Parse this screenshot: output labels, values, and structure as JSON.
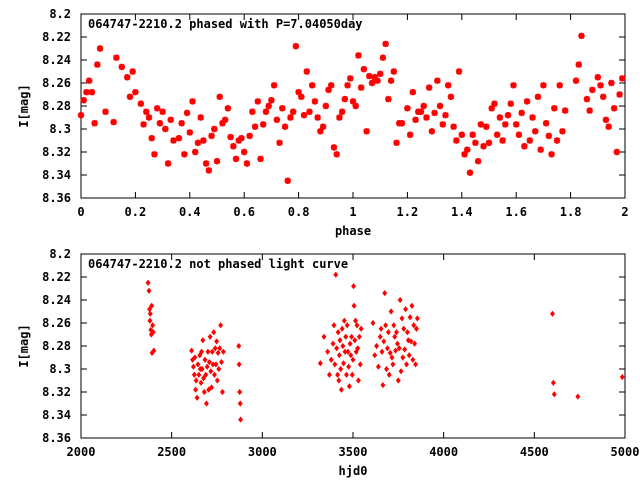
{
  "chart_data": [
    {
      "type": "scatter",
      "title": "064747-2210.2 phased with P=7.04050day",
      "xlabel": "phase",
      "ylabel": "I[mag]",
      "xlim": [
        0,
        2
      ],
      "ylim": [
        8.2,
        8.36
      ],
      "y_inverted": true,
      "grid": false,
      "marker": "star",
      "color": "#ff0000",
      "x_ticks": [
        "0",
        "0.2",
        "0.4",
        "0.6",
        "0.8",
        "1",
        "1.2",
        "1.4",
        "1.6",
        "1.8",
        "2"
      ],
      "y_ticks": [
        "8.2",
        "8.22",
        "8.24",
        "8.26",
        "8.28",
        "8.3",
        "8.32",
        "8.34",
        "8.36"
      ],
      "points": [
        [
          0.0,
          8.288
        ],
        [
          0.01,
          8.275
        ],
        [
          0.02,
          8.268
        ],
        [
          0.03,
          8.258
        ],
        [
          0.04,
          8.268
        ],
        [
          0.05,
          8.295
        ],
        [
          0.06,
          8.244
        ],
        [
          0.07,
          8.23
        ],
        [
          0.09,
          8.285
        ],
        [
          0.12,
          8.294
        ],
        [
          0.13,
          8.238
        ],
        [
          0.15,
          8.246
        ],
        [
          0.17,
          8.255
        ],
        [
          0.18,
          8.272
        ],
        [
          0.19,
          8.25
        ],
        [
          0.2,
          8.268
        ],
        [
          0.22,
          8.278
        ],
        [
          0.23,
          8.296
        ],
        [
          0.24,
          8.285
        ],
        [
          0.25,
          8.29
        ],
        [
          0.26,
          8.308
        ],
        [
          0.27,
          8.322
        ],
        [
          0.28,
          8.282
        ],
        [
          0.29,
          8.295
        ],
        [
          0.3,
          8.285
        ],
        [
          0.31,
          8.3
        ],
        [
          0.32,
          8.33
        ],
        [
          0.33,
          8.292
        ],
        [
          0.34,
          8.31
        ],
        [
          0.36,
          8.308
        ],
        [
          0.37,
          8.295
        ],
        [
          0.38,
          8.322
        ],
        [
          0.39,
          8.286
        ],
        [
          0.4,
          8.303
        ],
        [
          0.41,
          8.276
        ],
        [
          0.42,
          8.32
        ],
        [
          0.43,
          8.312
        ],
        [
          0.44,
          8.29
        ],
        [
          0.45,
          8.31
        ],
        [
          0.46,
          8.33
        ],
        [
          0.47,
          8.336
        ],
        [
          0.48,
          8.306
        ],
        [
          0.49,
          8.3
        ],
        [
          0.5,
          8.328
        ],
        [
          0.51,
          8.272
        ],
        [
          0.52,
          8.295
        ],
        [
          0.53,
          8.292
        ],
        [
          0.54,
          8.282
        ],
        [
          0.55,
          8.307
        ],
        [
          0.56,
          8.315
        ],
        [
          0.57,
          8.326
        ],
        [
          0.58,
          8.31
        ],
        [
          0.59,
          8.308
        ],
        [
          0.6,
          8.32
        ],
        [
          0.61,
          8.33
        ],
        [
          0.62,
          8.306
        ],
        [
          0.63,
          8.285
        ],
        [
          0.64,
          8.298
        ],
        [
          0.65,
          8.276
        ],
        [
          0.66,
          8.326
        ],
        [
          0.67,
          8.296
        ],
        [
          0.68,
          8.285
        ],
        [
          0.69,
          8.28
        ],
        [
          0.7,
          8.275
        ],
        [
          0.71,
          8.262
        ],
        [
          0.72,
          8.292
        ],
        [
          0.73,
          8.312
        ],
        [
          0.74,
          8.282
        ],
        [
          0.75,
          8.298
        ],
        [
          0.76,
          8.345
        ],
        [
          0.77,
          8.29
        ],
        [
          0.78,
          8.285
        ],
        [
          0.79,
          8.228
        ],
        [
          0.8,
          8.268
        ],
        [
          0.81,
          8.272
        ],
        [
          0.82,
          8.288
        ],
        [
          0.83,
          8.25
        ],
        [
          0.84,
          8.285
        ],
        [
          0.85,
          8.262
        ],
        [
          0.86,
          8.276
        ],
        [
          0.87,
          8.29
        ],
        [
          0.88,
          8.302
        ],
        [
          0.89,
          8.298
        ],
        [
          0.9,
          8.28
        ],
        [
          0.91,
          8.266
        ],
        [
          0.92,
          8.262
        ],
        [
          0.93,
          8.316
        ],
        [
          0.94,
          8.322
        ],
        [
          0.95,
          8.29
        ],
        [
          0.96,
          8.285
        ],
        [
          0.97,
          8.274
        ],
        [
          0.98,
          8.262
        ],
        [
          0.99,
          8.256
        ],
        [
          1.0,
          8.276
        ],
        [
          1.01,
          8.28
        ],
        [
          1.02,
          8.236
        ],
        [
          1.03,
          8.264
        ],
        [
          1.04,
          8.248
        ],
        [
          1.05,
          8.302
        ],
        [
          1.06,
          8.254
        ],
        [
          1.07,
          8.26
        ],
        [
          1.08,
          8.255
        ],
        [
          1.09,
          8.258
        ],
        [
          1.1,
          8.252
        ],
        [
          1.11,
          8.238
        ],
        [
          1.12,
          8.226
        ],
        [
          1.13,
          8.274
        ],
        [
          1.14,
          8.258
        ],
        [
          1.15,
          8.25
        ],
        [
          1.16,
          8.312
        ],
        [
          1.17,
          8.295
        ],
        [
          1.18,
          8.295
        ],
        [
          1.2,
          8.282
        ],
        [
          1.21,
          8.305
        ],
        [
          1.22,
          8.268
        ],
        [
          1.23,
          8.292
        ],
        [
          1.24,
          8.285
        ],
        [
          1.25,
          8.285
        ],
        [
          1.26,
          8.28
        ],
        [
          1.27,
          8.29
        ],
        [
          1.28,
          8.264
        ],
        [
          1.29,
          8.302
        ],
        [
          1.3,
          8.286
        ],
        [
          1.31,
          8.258
        ],
        [
          1.32,
          8.28
        ],
        [
          1.33,
          8.296
        ],
        [
          1.34,
          8.288
        ],
        [
          1.35,
          8.262
        ],
        [
          1.36,
          8.272
        ],
        [
          1.37,
          8.298
        ],
        [
          1.38,
          8.31
        ],
        [
          1.39,
          8.25
        ],
        [
          1.4,
          8.305
        ],
        [
          1.41,
          8.322
        ],
        [
          1.42,
          8.318
        ],
        [
          1.43,
          8.338
        ],
        [
          1.44,
          8.305
        ],
        [
          1.45,
          8.312
        ],
        [
          1.46,
          8.328
        ],
        [
          1.47,
          8.296
        ],
        [
          1.48,
          8.315
        ],
        [
          1.49,
          8.298
        ],
        [
          1.5,
          8.312
        ],
        [
          1.51,
          8.282
        ],
        [
          1.52,
          8.278
        ],
        [
          1.53,
          8.305
        ],
        [
          1.54,
          8.29
        ],
        [
          1.55,
          8.31
        ],
        [
          1.56,
          8.296
        ],
        [
          1.57,
          8.288
        ],
        [
          1.58,
          8.278
        ],
        [
          1.59,
          8.262
        ],
        [
          1.6,
          8.296
        ],
        [
          1.61,
          8.305
        ],
        [
          1.62,
          8.286
        ],
        [
          1.63,
          8.315
        ],
        [
          1.64,
          8.276
        ],
        [
          1.65,
          8.31
        ],
        [
          1.66,
          8.29
        ],
        [
          1.67,
          8.302
        ],
        [
          1.68,
          8.272
        ],
        [
          1.69,
          8.318
        ],
        [
          1.7,
          8.262
        ],
        [
          1.71,
          8.295
        ],
        [
          1.72,
          8.306
        ],
        [
          1.73,
          8.322
        ],
        [
          1.74,
          8.282
        ],
        [
          1.75,
          8.31
        ],
        [
          1.76,
          8.262
        ],
        [
          1.77,
          8.302
        ],
        [
          1.78,
          8.284
        ],
        [
          1.82,
          8.258
        ],
        [
          1.83,
          8.244
        ],
        [
          1.84,
          8.219
        ],
        [
          1.86,
          8.274
        ],
        [
          1.87,
          8.284
        ],
        [
          1.88,
          8.266
        ],
        [
          1.9,
          8.255
        ],
        [
          1.91,
          8.262
        ],
        [
          1.92,
          8.272
        ],
        [
          1.93,
          8.292
        ],
        [
          1.94,
          8.298
        ],
        [
          1.95,
          8.26
        ],
        [
          1.96,
          8.282
        ],
        [
          1.97,
          8.32
        ],
        [
          1.98,
          8.27
        ],
        [
          1.99,
          8.256
        ]
      ]
    },
    {
      "type": "scatter",
      "title": "064747-2210.2 not phased light curve",
      "xlabel": "hjd0",
      "ylabel": "I[mag]",
      "xlim": [
        2000,
        5000
      ],
      "ylim": [
        8.2,
        8.36
      ],
      "y_inverted": true,
      "grid": false,
      "marker": "diamond",
      "color": "#ff0000",
      "x_ticks": [
        "2000",
        "2500",
        "3000",
        "3500",
        "4000",
        "4500",
        "5000"
      ],
      "y_ticks": [
        "8.2",
        "8.22",
        "8.24",
        "8.26",
        "8.28",
        "8.3",
        "8.32",
        "8.34",
        "8.36"
      ],
      "points": [
        [
          2370,
          8.225
        ],
        [
          2375,
          8.232
        ],
        [
          2378,
          8.248
        ],
        [
          2380,
          8.258
        ],
        [
          2382,
          8.252
        ],
        [
          2385,
          8.266
        ],
        [
          2388,
          8.27
        ],
        [
          2390,
          8.245
        ],
        [
          2392,
          8.286
        ],
        [
          2395,
          8.262
        ],
        [
          2398,
          8.268
        ],
        [
          2402,
          8.284
        ],
        [
          2610,
          8.284
        ],
        [
          2615,
          8.292
        ],
        [
          2620,
          8.298
        ],
        [
          2625,
          8.305
        ],
        [
          2628,
          8.29
        ],
        [
          2632,
          8.318
        ],
        [
          2635,
          8.31
        ],
        [
          2640,
          8.325
        ],
        [
          2645,
          8.296
        ],
        [
          2650,
          8.305
        ],
        [
          2655,
          8.288
        ],
        [
          2658,
          8.3
        ],
        [
          2662,
          8.312
        ],
        [
          2665,
          8.285
        ],
        [
          2668,
          8.3
        ],
        [
          2672,
          8.275
        ],
        [
          2676,
          8.308
        ],
        [
          2680,
          8.32
        ],
        [
          2684,
          8.292
        ],
        [
          2688,
          8.305
        ],
        [
          2692,
          8.33
        ],
        [
          2696,
          8.298
        ],
        [
          2700,
          8.285
        ],
        [
          2704,
          8.318
        ],
        [
          2708,
          8.294
        ],
        [
          2712,
          8.272
        ],
        [
          2716,
          8.302
        ],
        [
          2720,
          8.316
        ],
        [
          2724,
          8.285
        ],
        [
          2728,
          8.296
        ],
        [
          2732,
          8.268
        ],
        [
          2736,
          8.305
        ],
        [
          2740,
          8.282
        ],
        [
          2744,
          8.296
        ],
        [
          2748,
          8.276
        ],
        [
          2752,
          8.31
        ],
        [
          2756,
          8.286
        ],
        [
          2760,
          8.3
        ],
        [
          2765,
          8.282
        ],
        [
          2770,
          8.262
        ],
        [
          2775,
          8.294
        ],
        [
          2780,
          8.32
        ],
        [
          2785,
          8.285
        ],
        [
          2870,
          8.28
        ],
        [
          2872,
          8.296
        ],
        [
          2875,
          8.32
        ],
        [
          2878,
          8.33
        ],
        [
          2880,
          8.344
        ],
        [
          3320,
          8.295
        ],
        [
          3340,
          8.272
        ],
        [
          3360,
          8.285
        ],
        [
          3370,
          8.305
        ],
        [
          3380,
          8.292
        ],
        [
          3390,
          8.278
        ],
        [
          3395,
          8.262
        ],
        [
          3400,
          8.296
        ],
        [
          3405,
          8.218
        ],
        [
          3410,
          8.282
        ],
        [
          3415,
          8.305
        ],
        [
          3418,
          8.268
        ],
        [
          3422,
          8.31
        ],
        [
          3425,
          8.288
        ],
        [
          3428,
          8.275
        ],
        [
          3432,
          8.3
        ],
        [
          3436,
          8.318
        ],
        [
          3440,
          8.265
        ],
        [
          3444,
          8.28
        ],
        [
          3448,
          8.295
        ],
        [
          3452,
          8.258
        ],
        [
          3456,
          8.285
        ],
        [
          3460,
          8.272
        ],
        [
          3464,
          8.305
        ],
        [
          3468,
          8.262
        ],
        [
          3472,
          8.285
        ],
        [
          3476,
          8.298
        ],
        [
          3480,
          8.315
        ],
        [
          3484,
          8.278
        ],
        [
          3488,
          8.288
        ],
        [
          3492,
          8.272
        ],
        [
          3496,
          8.305
        ],
        [
          3500,
          8.292
        ],
        [
          3503,
          8.228
        ],
        [
          3506,
          8.245
        ],
        [
          3510,
          8.275
        ],
        [
          3514,
          8.258
        ],
        [
          3518,
          8.285
        ],
        [
          3522,
          8.262
        ],
        [
          3526,
          8.282
        ],
        [
          3530,
          8.31
        ],
        [
          3535,
          8.272
        ],
        [
          3540,
          8.296
        ],
        [
          3545,
          8.265
        ],
        [
          3610,
          8.26
        ],
        [
          3620,
          8.288
        ],
        [
          3630,
          8.28
        ],
        [
          3640,
          8.298
        ],
        [
          3650,
          8.272
        ],
        [
          3655,
          8.265
        ],
        [
          3660,
          8.285
        ],
        [
          3665,
          8.314
        ],
        [
          3670,
          8.276
        ],
        [
          3675,
          8.234
        ],
        [
          3680,
          8.262
        ],
        [
          3685,
          8.3
        ],
        [
          3690,
          8.282
        ],
        [
          3695,
          8.268
        ],
        [
          3700,
          8.305
        ],
        [
          3705,
          8.286
        ],
        [
          3710,
          8.25
        ],
        [
          3715,
          8.29
        ],
        [
          3720,
          8.296
        ],
        [
          3725,
          8.262
        ],
        [
          3730,
          8.272
        ],
        [
          3735,
          8.284
        ],
        [
          3740,
          8.268
        ],
        [
          3745,
          8.278
        ],
        [
          3750,
          8.31
        ],
        [
          3755,
          8.282
        ],
        [
          3760,
          8.24
        ],
        [
          3765,
          8.302
        ],
        [
          3770,
          8.256
        ],
        [
          3775,
          8.29
        ],
        [
          3780,
          8.265
        ],
        [
          3785,
          8.283
        ],
        [
          3790,
          8.248
        ],
        [
          3795,
          8.296
        ],
        [
          3800,
          8.268
        ],
        [
          3805,
          8.275
        ],
        [
          3810,
          8.288
        ],
        [
          3815,
          8.255
        ],
        [
          3820,
          8.276
        ],
        [
          3825,
          8.245
        ],
        [
          3830,
          8.292
        ],
        [
          3835,
          8.262
        ],
        [
          3840,
          8.278
        ],
        [
          3845,
          8.296
        ],
        [
          3850,
          8.265
        ],
        [
          3855,
          8.256
        ],
        [
          4600,
          8.252
        ],
        [
          4605,
          8.312
        ],
        [
          4610,
          8.322
        ],
        [
          4740,
          8.324
        ],
        [
          4985,
          8.307
        ]
      ]
    }
  ]
}
